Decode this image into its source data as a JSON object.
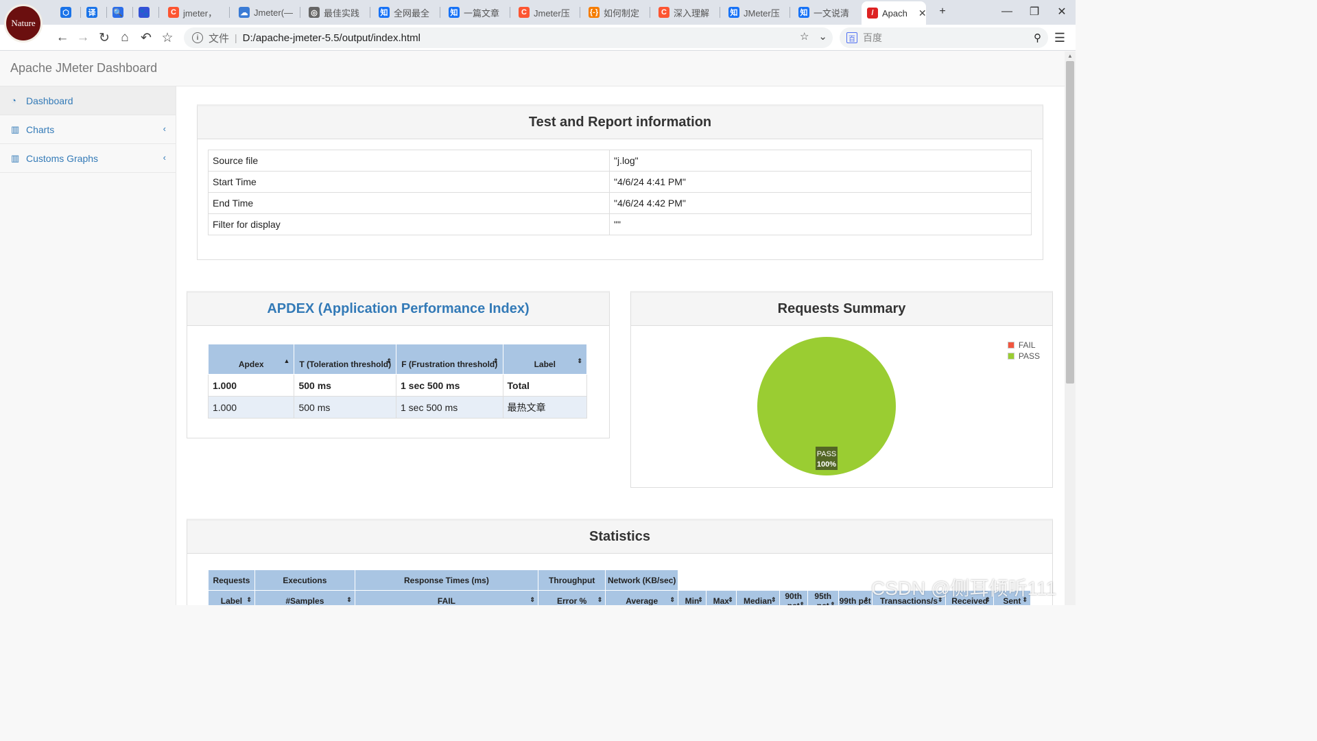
{
  "profile": {
    "label": "Nature"
  },
  "tabs": [
    {
      "title": "",
      "icon": "shield-icon",
      "color": "#1a73e8",
      "glyph": "⬡"
    },
    {
      "title": "",
      "icon": "translate-icon",
      "color": "#1a73e8",
      "glyph": "译"
    },
    {
      "title": "",
      "icon": "search-icon",
      "color": "#2b6de8",
      "glyph": "🔍"
    },
    {
      "title": "",
      "icon": "baidu-paw-icon",
      "color": "#3452d6",
      "glyph": "🐾"
    },
    {
      "title": "jmeter，",
      "icon": "csdn-icon",
      "color": "#fc5531",
      "glyph": "C"
    },
    {
      "title": "Jmeter(—",
      "icon": "cloud-icon",
      "color": "#3a7bd5",
      "glyph": "☁"
    },
    {
      "title": "最佳实践",
      "icon": "globe-icon",
      "color": "#666",
      "glyph": "◎"
    },
    {
      "title": "全网最全",
      "icon": "zhihu-icon",
      "color": "#1772f6",
      "glyph": "知"
    },
    {
      "title": "一篇文章",
      "icon": "zhihu-icon",
      "color": "#1772f6",
      "glyph": "知"
    },
    {
      "title": "Jmeter压",
      "icon": "csdn-icon",
      "color": "#fc5531",
      "glyph": "C"
    },
    {
      "title": "如何制定",
      "icon": "bracket-icon",
      "color": "#f57c00",
      "glyph": "{-}"
    },
    {
      "title": "深入理解",
      "icon": "csdn-icon",
      "color": "#fc5531",
      "glyph": "C"
    },
    {
      "title": "JMeter压",
      "icon": "zhihu-icon",
      "color": "#1772f6",
      "glyph": "知"
    },
    {
      "title": "一文说清",
      "icon": "zhihu-icon",
      "color": "#1772f6",
      "glyph": "知"
    },
    {
      "title": "Apach",
      "icon": "feather-icon",
      "color": "#d22",
      "glyph": "/"
    }
  ],
  "window": {
    "new_tab": "+",
    "minimize": "—",
    "restore": "❐",
    "close": "✕"
  },
  "toolbar": {
    "file_label": "文件",
    "url": "D:/apache-jmeter-5.5/output/index.html",
    "search_placeholder": "百度"
  },
  "app": {
    "brand": "Apache JMeter Dashboard"
  },
  "sidebar": {
    "items": [
      {
        "label": "Dashboard",
        "icon": "dashboard-icon"
      },
      {
        "label": "Charts",
        "icon": "bar-chart-icon"
      },
      {
        "label": "Customs Graphs",
        "icon": "bar-chart-icon"
      }
    ]
  },
  "report_info": {
    "title": "Test and Report information",
    "rows": [
      {
        "key": "Source file",
        "value": "\"j.log\""
      },
      {
        "key": "Start Time",
        "value": "\"4/6/24 4:41 PM\""
      },
      {
        "key": "End Time",
        "value": "\"4/6/24 4:42 PM\""
      },
      {
        "key": "Filter for display",
        "value": "\"\""
      }
    ]
  },
  "apdex": {
    "title": "APDEX (Application Performance Index)",
    "headers": [
      "Apdex",
      "T (Toleration threshold)",
      "F (Frustration threshold)",
      "Label"
    ],
    "rows": [
      [
        "1.000",
        "500 ms",
        "1 sec 500 ms",
        "Total"
      ],
      [
        "1.000",
        "500 ms",
        "1 sec 500 ms",
        "最热文章"
      ]
    ]
  },
  "requests_summary": {
    "title": "Requests Summary",
    "legend": [
      {
        "label": "FAIL",
        "color": "#f1563f"
      },
      {
        "label": "PASS",
        "color": "#9acd32"
      }
    ],
    "slice_label": "PASS",
    "slice_pct": "100%",
    "chart_data": {
      "type": "pie",
      "categories": [
        "FAIL",
        "PASS"
      ],
      "values": [
        0,
        100
      ]
    }
  },
  "statistics": {
    "title": "Statistics",
    "group_headers": [
      "Requests",
      "Executions",
      "Response Times (ms)",
      "Throughput",
      "Network (KB/sec)"
    ],
    "columns": [
      "Label",
      "#Samples",
      "FAIL",
      "Error %",
      "Average",
      "Min",
      "Max",
      "Median",
      "90th pct",
      "95th pct",
      "99th pct",
      "Transactions/s",
      "Received",
      "Sent"
    ]
  },
  "watermark": "CSDN @侧耳倾听111"
}
